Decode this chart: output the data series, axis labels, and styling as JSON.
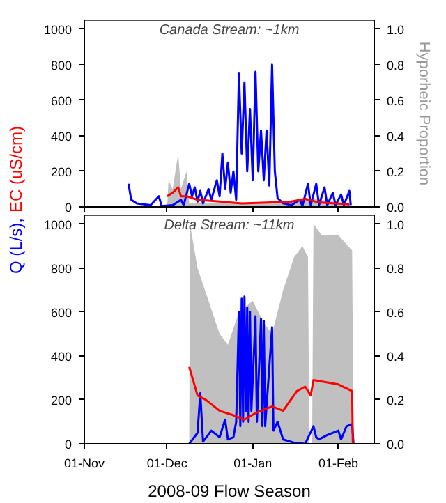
{
  "chart_data": [
    {
      "type": "line",
      "title": "Canada Stream: ~1km",
      "ylabel": "Q (L/s), EC (uS/cm)",
      "y2label": "Hyporheic Proportion",
      "xlim": [
        "2008-11-01",
        "2009-02-14"
      ],
      "ylim": [
        0,
        1050
      ],
      "y2lim": [
        0,
        1.05
      ],
      "xticks": [
        {
          "value": "2008-11-01",
          "label": "01-Nov"
        },
        {
          "value": "2008-12-01",
          "label": "01-Dec"
        },
        {
          "value": "2009-01-01",
          "label": "01-Jan"
        },
        {
          "value": "2009-02-01",
          "label": "01-Feb"
        }
      ],
      "yticks": [
        0,
        200,
        400,
        600,
        800,
        1000
      ],
      "y2ticks": [
        {
          "value": 0,
          "label": "0.0"
        },
        {
          "value": 0.2,
          "label": "0.2"
        },
        {
          "value": 0.4,
          "label": "0.4"
        },
        {
          "value": 0.6,
          "label": "0.6"
        },
        {
          "value": 0.8,
          "label": "0.8"
        },
        {
          "value": 1,
          "label": "1.0"
        }
      ],
      "tick_labels": "y",
      "series": [
        {
          "type": "area",
          "axis": "y2",
          "color": "#c0c0c0",
          "x": [
            "2008-12-01",
            "2008-12-01T12:00",
            "2008-12-03",
            "2008-12-05",
            "2008-12-06",
            "2008-12-08",
            "2008-12-09",
            "2008-12-15",
            "2009-01-10",
            "2009-01-20",
            "2009-02-05",
            "2009-02-05T12:00"
          ],
          "values": [
            0,
            0.15,
            0.1,
            0.3,
            0.1,
            0.2,
            0.02,
            0.02,
            0.02,
            0.05,
            0.02,
            0
          ]
        },
        {
          "color": "#0000ff",
          "x": [
            "2008-11-17",
            "2008-11-18",
            "2008-11-20",
            "2008-11-25",
            "2008-11-28",
            "2008-11-29",
            "2008-12-03",
            "2008-12-06",
            "2008-12-07",
            "2008-12-09",
            "2008-12-10",
            "2008-12-11",
            "2008-12-12",
            "2008-12-13",
            "2008-12-14",
            "2008-12-16",
            "2008-12-17",
            "2008-12-19",
            "2008-12-20",
            "2008-12-21",
            "2008-12-22",
            "2008-12-23",
            "2008-12-24",
            "2008-12-25",
            "2008-12-26",
            "2008-12-27",
            "2008-12-28",
            "2008-12-29",
            "2008-12-30",
            "2008-12-31",
            "2009-01-01",
            "2009-01-02",
            "2009-01-03",
            "2009-01-04",
            "2009-01-05",
            "2009-01-06",
            "2009-01-07",
            "2009-01-08",
            "2009-01-09",
            "2009-01-10",
            "2009-01-12",
            "2009-01-15",
            "2009-01-18",
            "2009-01-19",
            "2009-01-21",
            "2009-01-22",
            "2009-01-24",
            "2009-01-25",
            "2009-01-27",
            "2009-01-28",
            "2009-01-30",
            "2009-01-31",
            "2009-02-02",
            "2009-02-03",
            "2009-02-05",
            "2009-02-05T12:00"
          ],
          "values": [
            130,
            40,
            20,
            10,
            60,
            5,
            10,
            40,
            10,
            130,
            60,
            110,
            30,
            90,
            20,
            100,
            40,
            150,
            60,
            300,
            100,
            250,
            80,
            200,
            40,
            750,
            300,
            700,
            200,
            550,
            150,
            760,
            200,
            430,
            150,
            430,
            120,
            800,
            200,
            50,
            20,
            10,
            40,
            5,
            130,
            10,
            130,
            10,
            110,
            10,
            80,
            10,
            70,
            10,
            90,
            10
          ]
        },
        {
          "color": "#ff0000",
          "x": [
            "2008-12-01",
            "2008-12-03",
            "2008-12-05",
            "2008-12-06",
            "2008-12-08",
            "2008-12-12",
            "2008-12-20",
            "2008-12-28",
            "2009-01-08",
            "2009-01-15",
            "2009-01-20",
            "2009-01-25",
            "2009-02-05"
          ],
          "values": [
            60,
            80,
            110,
            60,
            60,
            40,
            30,
            20,
            25,
            30,
            45,
            25,
            15
          ]
        }
      ]
    },
    {
      "type": "line",
      "title": "Delta Stream: ~11km",
      "xlabel": "2008-09 Flow Season",
      "xlim": [
        "2008-11-01",
        "2009-02-14"
      ],
      "ylim": [
        0,
        1040
      ],
      "y2lim": [
        0,
        1.04
      ],
      "xticks": [
        {
          "value": "2008-11-01",
          "label": "01-Nov"
        },
        {
          "value": "2008-12-01",
          "label": "01-Dec"
        },
        {
          "value": "2009-01-01",
          "label": "01-Jan"
        },
        {
          "value": "2009-02-01",
          "label": "01-Feb"
        }
      ],
      "yticks": [
        0,
        200,
        400,
        600,
        800,
        1000
      ],
      "y2ticks": [
        {
          "value": 0,
          "label": "0.0"
        },
        {
          "value": 0.2,
          "label": "0.2"
        },
        {
          "value": 0.4,
          "label": "0.4"
        },
        {
          "value": 0.6,
          "label": "0.6"
        },
        {
          "value": 0.8,
          "label": "0.8"
        },
        {
          "value": 1,
          "label": "1.0"
        }
      ],
      "series": [
        {
          "type": "area",
          "axis": "y2",
          "color": "#c0c0c0",
          "x": [
            "2008-12-09",
            "2008-12-09T06:00",
            "2008-12-12",
            "2008-12-16",
            "2008-12-20",
            "2008-12-23",
            "2008-12-27",
            "2009-01-01",
            "2009-01-05",
            "2009-01-08",
            "2009-01-12",
            "2009-01-16",
            "2009-01-19",
            "2009-01-21",
            "2009-01-21T12:00",
            "2009-01-22T12:00",
            "2009-01-23",
            "2009-01-26",
            "2009-02-01",
            "2009-02-06",
            "2009-02-06T12:00"
          ],
          "values": [
            0,
            1.0,
            0.8,
            0.65,
            0.5,
            0.45,
            0.6,
            0.65,
            0.55,
            0.5,
            0.7,
            0.85,
            0.9,
            0.85,
            0,
            0,
            1.0,
            0.95,
            0.95,
            0.88,
            0
          ]
        },
        {
          "color": "#0000ff",
          "x": [
            "2008-12-09",
            "2008-12-12",
            "2008-12-13",
            "2008-12-14",
            "2008-12-17",
            "2008-12-20",
            "2008-12-22",
            "2008-12-23",
            "2008-12-25",
            "2008-12-26",
            "2008-12-27",
            "2008-12-27T12:00",
            "2008-12-28",
            "2008-12-28T12:00",
            "2008-12-29",
            "2008-12-29T12:00",
            "2008-12-30",
            "2008-12-30T12:00",
            "2008-12-31",
            "2008-12-31T12:00",
            "2009-01-02",
            "2009-01-02T12:00",
            "2009-01-04",
            "2009-01-04T12:00",
            "2009-01-05",
            "2009-01-05T12:00",
            "2009-01-08",
            "2009-01-08T12:00",
            "2009-01-10",
            "2009-01-12",
            "2009-01-16",
            "2009-01-20",
            "2009-01-23",
            "2009-01-24",
            "2009-01-25",
            "2009-01-28",
            "2009-02-01",
            "2009-02-02",
            "2009-02-04",
            "2009-02-06",
            "2009-02-06T12:00"
          ],
          "values": [
            0,
            50,
            230,
            10,
            60,
            30,
            110,
            20,
            30,
            100,
            600,
            80,
            660,
            100,
            670,
            150,
            620,
            100,
            600,
            150,
            580,
            100,
            570,
            80,
            560,
            80,
            530,
            60,
            100,
            20,
            5,
            0,
            80,
            30,
            20,
            40,
            60,
            20,
            80,
            90,
            0
          ]
        },
        {
          "color": "#ff0000",
          "x": [
            "2008-12-09",
            "2008-12-12",
            "2008-12-15",
            "2008-12-20",
            "2008-12-25",
            "2008-12-29",
            "2009-01-02",
            "2009-01-08",
            "2009-01-12",
            "2009-01-17",
            "2009-01-20",
            "2009-01-22",
            "2009-01-23",
            "2009-02-01",
            "2009-02-06",
            "2009-02-06T06:00"
          ],
          "values": [
            350,
            220,
            200,
            150,
            130,
            110,
            140,
            170,
            150,
            240,
            260,
            220,
            290,
            270,
            240,
            0
          ]
        }
      ]
    }
  ]
}
